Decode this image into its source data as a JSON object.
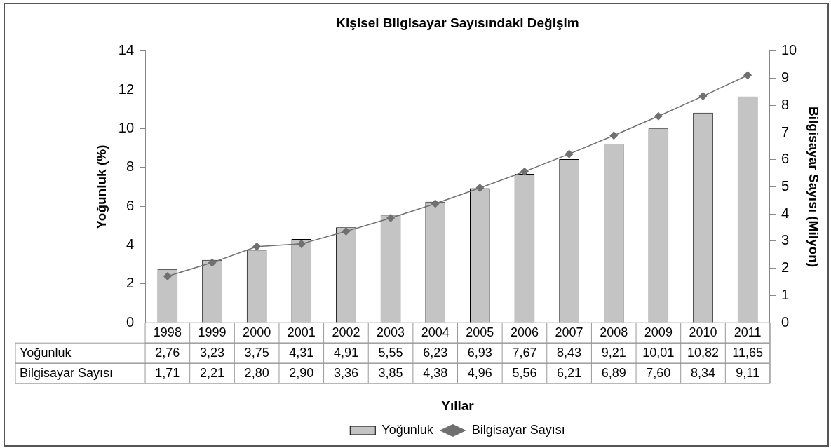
{
  "chart_data": {
    "type": "bar",
    "title": "Kişisel Bilgisayar Sayısındaki Değişim",
    "xlabel": "Yıllar",
    "ylabel": "Yoğunluk (%)",
    "y2label": "Bilgisayar Sayısı (Milyon)",
    "categories": [
      "1998",
      "1999",
      "2000",
      "2001",
      "2002",
      "2003",
      "2004",
      "2005",
      "2006",
      "2007",
      "2008",
      "2009",
      "2010",
      "2011"
    ],
    "series": [
      {
        "name": "Yoğunluk",
        "color": "#c4c4c4",
        "values": [
          2.76,
          3.23,
          3.75,
          4.31,
          4.91,
          5.55,
          6.23,
          6.93,
          7.67,
          8.43,
          9.21,
          10.01,
          10.82,
          11.65
        ],
        "value_labels": [
          "2,76",
          "3,23",
          "3,75",
          "4,31",
          "4,91",
          "5,55",
          "6,23",
          "6,93",
          "7,67",
          "8,43",
          "9,21",
          "10,01",
          "10,82",
          "11,65"
        ]
      },
      {
        "name": "Bilgisayar Sayısı",
        "type": "line",
        "axis": "y2",
        "color": "#707070",
        "values": [
          1.71,
          2.21,
          2.8,
          2.9,
          3.36,
          3.85,
          4.38,
          4.96,
          5.56,
          6.21,
          6.89,
          7.6,
          8.34,
          9.11
        ],
        "value_labels": [
          "1,71",
          "2,21",
          "2,80",
          "2,90",
          "3,36",
          "3,85",
          "4,38",
          "4,96",
          "5,56",
          "6,21",
          "6,89",
          "7,60",
          "8,34",
          "9,11"
        ]
      }
    ],
    "ylim": [
      0,
      14
    ],
    "yticks": [
      0,
      2,
      4,
      6,
      8,
      10,
      12,
      14
    ],
    "y2lim": [
      0,
      10
    ],
    "y2ticks": [
      0,
      1,
      2,
      3,
      4,
      5,
      6,
      7,
      8,
      9,
      10
    ],
    "legend": "bottom",
    "marker": "diamond",
    "line_style": "solid"
  }
}
